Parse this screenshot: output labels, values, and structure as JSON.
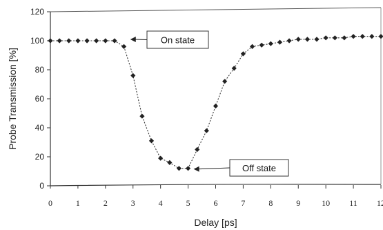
{
  "chart_data": {
    "type": "scatter",
    "title": "",
    "xlabel": "Delay [ps]",
    "ylabel": "Probe Transmission [%]",
    "xlim": [
      0,
      12
    ],
    "ylim": [
      0,
      120
    ],
    "x_ticks": [
      "0",
      "1",
      "2",
      "3",
      "4",
      "5",
      "6",
      "7",
      "8",
      "9",
      "10",
      "11",
      "12"
    ],
    "y_ticks": [
      "0",
      "20",
      "40",
      "60",
      "80",
      "100",
      "120"
    ],
    "grid": false,
    "connector": "dotted",
    "marker": "diamond",
    "series": [
      {
        "x": [
          0,
          0.33,
          0.67,
          1.0,
          1.33,
          1.67,
          2.0,
          2.33,
          2.67,
          3.0,
          3.33,
          3.67,
          4.0,
          4.33,
          4.67,
          5.0,
          5.33,
          5.67,
          6.0,
          6.33,
          6.67,
          7.0,
          7.33,
          7.67,
          8.0,
          8.33,
          8.67,
          9.0,
          9.33,
          9.67,
          10.0,
          10.33,
          10.67,
          11.0,
          11.33,
          11.67,
          12.0
        ],
        "y": [
          100,
          100,
          100,
          100,
          100,
          100,
          100,
          100,
          96,
          76,
          48,
          31,
          19,
          16,
          12,
          12,
          25,
          38,
          55,
          72,
          81,
          91,
          96,
          97,
          98,
          99,
          100,
          101,
          101,
          101,
          102,
          102,
          102,
          103,
          103,
          103,
          103
        ]
      }
    ],
    "annotations": [
      {
        "text": "On state",
        "x": 2.8,
        "y": 100
      },
      {
        "text": "Off state",
        "x": 5.0,
        "y": 12
      }
    ]
  }
}
